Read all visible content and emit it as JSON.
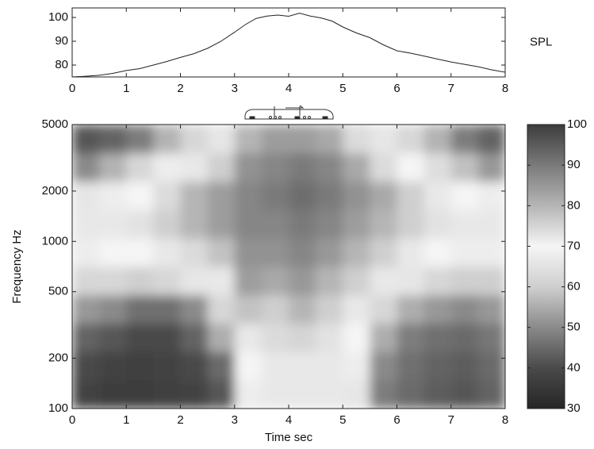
{
  "chart_data": [
    {
      "type": "line",
      "ylabel": "SPL",
      "color": "#222222",
      "x": [
        0,
        0.25,
        0.5,
        0.75,
        1,
        1.25,
        1.5,
        1.75,
        2,
        2.25,
        2.5,
        2.75,
        3,
        3.2,
        3.4,
        3.6,
        3.8,
        4,
        4.2,
        4.4,
        4.6,
        4.8,
        5,
        5.25,
        5.5,
        5.75,
        6,
        6.25,
        6.5,
        6.75,
        7,
        7.25,
        7.5,
        7.75,
        8
      ],
      "values": [
        75,
        75.3,
        75.7,
        76.5,
        77.7,
        78.5,
        80,
        81.5,
        83.2,
        84.8,
        87,
        90,
        93.8,
        97,
        99.6,
        100.6,
        101,
        100.5,
        101.8,
        100.6,
        99.8,
        98.5,
        96,
        93.5,
        91.5,
        88.5,
        86,
        85,
        83.8,
        82.5,
        81.3,
        80.3,
        79.3,
        78,
        77
      ],
      "xlim": [
        0,
        8
      ],
      "xticks": [
        0,
        1,
        2,
        3,
        4,
        5,
        6,
        7,
        8
      ],
      "ylim": [
        75,
        104
      ],
      "yticks": [
        80,
        90,
        100
      ]
    },
    {
      "type": "heatmap",
      "xlabel": "Time  sec",
      "ylabel": "Frequency  Hz",
      "yscale": "log",
      "x": [
        0.25,
        0.75,
        1.25,
        1.75,
        2.25,
        2.75,
        3.25,
        3.75,
        4.25,
        4.75,
        5.25,
        5.75,
        6.25,
        6.75,
        7.25,
        7.75
      ],
      "y": [
        122,
        180,
        266,
        393,
        582,
        860,
        1272,
        1881,
        2782,
        4114
      ],
      "z": [
        [
          38,
          36,
          36,
          37,
          38,
          42,
          68,
          72,
          72,
          72,
          66,
          48,
          45,
          43,
          42,
          44
        ],
        [
          40,
          38,
          37,
          38,
          40,
          45,
          70,
          72,
          72,
          72,
          68,
          50,
          46,
          44,
          43,
          45
        ],
        [
          44,
          42,
          40,
          40,
          44,
          55,
          72,
          74,
          75,
          73,
          70,
          55,
          48,
          46,
          45,
          47
        ],
        [
          52,
          50,
          46,
          46,
          50,
          62,
          78,
          76,
          80,
          76,
          72,
          62,
          55,
          52,
          50,
          52
        ],
        [
          62,
          62,
          60,
          62,
          66,
          72,
          84,
          82,
          85,
          80,
          76,
          72,
          66,
          62,
          60,
          60
        ],
        [
          68,
          70,
          70,
          72,
          74,
          78,
          86,
          86,
          88,
          85,
          80,
          76,
          72,
          70,
          68,
          68
        ],
        [
          72,
          72,
          73,
          76,
          80,
          84,
          88,
          88,
          90,
          88,
          84,
          80,
          76,
          73,
          72,
          72
        ],
        [
          66,
          68,
          70,
          74,
          80,
          84,
          88,
          90,
          92,
          90,
          86,
          82,
          76,
          72,
          70,
          68
        ],
        [
          50,
          56,
          62,
          68,
          72,
          76,
          86,
          88,
          90,
          88,
          82,
          74,
          70,
          64,
          58,
          52
        ],
        [
          42,
          44,
          48,
          56,
          62,
          66,
          80,
          84,
          84,
          82,
          74,
          66,
          62,
          56,
          48,
          44
        ]
      ],
      "xlim": [
        0,
        8
      ],
      "xticks": [
        0,
        1,
        2,
        3,
        4,
        5,
        6,
        7,
        8
      ],
      "ylim": [
        100,
        5000
      ],
      "yticks": [
        100,
        200,
        500,
        1000,
        2000,
        5000
      ],
      "zlim": [
        30,
        100
      ],
      "zticks": [
        30,
        40,
        50,
        60,
        70,
        80,
        90,
        100
      ],
      "colormap": [
        "#262626",
        "#4a4a4a",
        "#8a8a8a",
        "#cfcfcf",
        "#f5f5f5",
        "#b5b5b5",
        "#7a7a7a",
        "#3c3c3c"
      ]
    }
  ]
}
